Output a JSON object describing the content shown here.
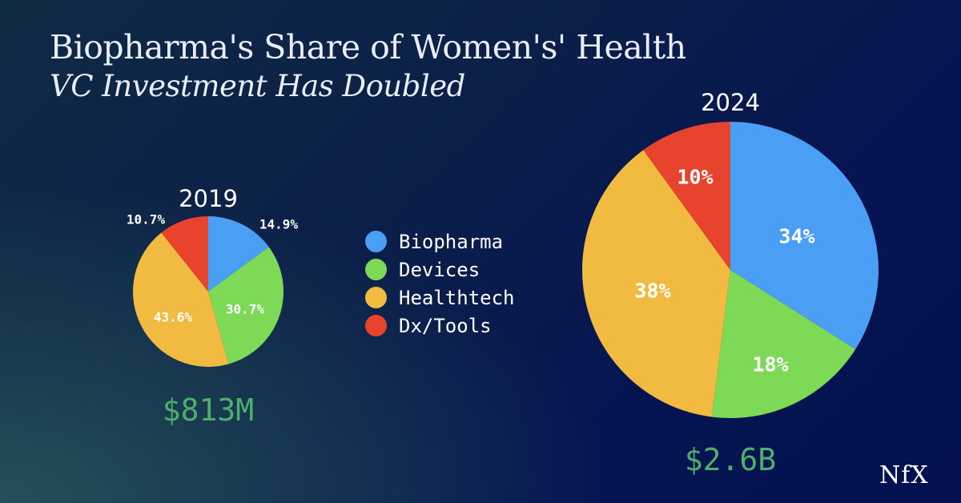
{
  "header": {
    "title": "Biopharma's Share of Women's' Health",
    "subtitle": "VC Investment Has Doubled"
  },
  "legend": {
    "items": [
      {
        "label": "Biopharma",
        "color": "#4a9ff5"
      },
      {
        "label": "Devices",
        "color": "#7ed957"
      },
      {
        "label": "Healthtech",
        "color": "#f0bb40"
      },
      {
        "label": "Dx/Tools",
        "color": "#e8432d"
      }
    ]
  },
  "logo": {
    "text": "NfX"
  },
  "chart_data": [
    {
      "type": "pie",
      "title": "2019",
      "total_label": "$813M",
      "categories": [
        "Biopharma",
        "Devices",
        "Healthtech",
        "Dx/Tools"
      ],
      "values": [
        14.9,
        30.7,
        43.6,
        10.7
      ],
      "value_labels": [
        "14.9%",
        "30.7%",
        "43.6%",
        "10.7%"
      ],
      "colors": [
        "#4a9ff5",
        "#7ed957",
        "#f0bb40",
        "#e8432d"
      ]
    },
    {
      "type": "pie",
      "title": "2024",
      "total_label": "$2.6B",
      "categories": [
        "Biopharma",
        "Devices",
        "Healthtech",
        "Dx/Tools"
      ],
      "values": [
        34,
        18,
        38,
        10
      ],
      "value_labels": [
        "34%",
        "18%",
        "38%",
        "10%"
      ],
      "colors": [
        "#4a9ff5",
        "#7ed957",
        "#f0bb40",
        "#e8432d"
      ]
    }
  ]
}
